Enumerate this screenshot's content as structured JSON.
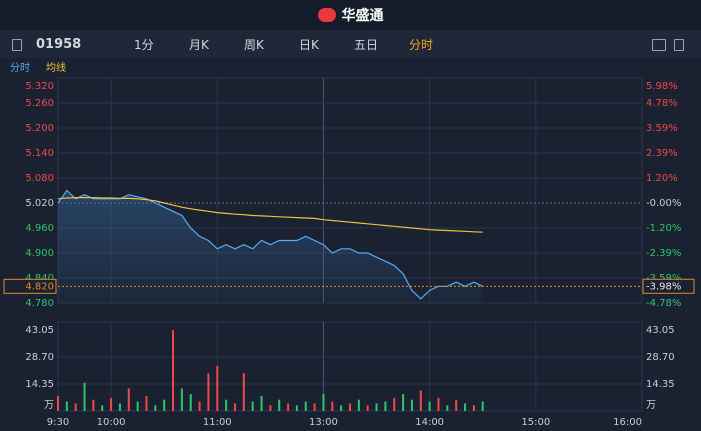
{
  "header": {
    "title": "华盛通"
  },
  "toolbar": {
    "code": "01958",
    "tabs": [
      "分时",
      "五日",
      "日K",
      "周K",
      "月K",
      "1分"
    ],
    "active": 0
  },
  "chart_data": {
    "type": "line",
    "legend": [
      "分时",
      "均线"
    ],
    "x": [
      "9:30",
      "9:35",
      "9:40",
      "9:45",
      "9:50",
      "9:55",
      "10:00",
      "10:05",
      "10:10",
      "10:15",
      "10:20",
      "10:25",
      "10:30",
      "10:35",
      "10:40",
      "10:45",
      "10:50",
      "10:55",
      "11:00",
      "11:05",
      "11:10",
      "11:15",
      "11:20",
      "11:25",
      "11:30",
      "11:35",
      "11:40",
      "11:45",
      "11:50",
      "11:55",
      "13:00",
      "13:05",
      "13:10",
      "13:15",
      "13:20",
      "13:25",
      "13:30",
      "13:35",
      "13:40",
      "13:45",
      "13:50",
      "13:55",
      "14:00",
      "14:05",
      "14:10",
      "14:15",
      "14:20",
      "14:25",
      "14:30"
    ],
    "xlim": [
      "9:30",
      "16:00"
    ],
    "xticks": [
      "9:30",
      "10:00",
      "11:00",
      "13:00",
      "14:00",
      "15:00",
      "16:00"
    ],
    "series": [
      {
        "name": "分时",
        "color": "#5aaaf0",
        "values": [
          5.02,
          5.05,
          5.03,
          5.04,
          5.03,
          5.03,
          5.03,
          5.03,
          5.04,
          5.035,
          5.03,
          5.02,
          5.01,
          5.0,
          4.99,
          4.96,
          4.94,
          4.93,
          4.91,
          4.92,
          4.91,
          4.92,
          4.91,
          4.93,
          4.92,
          4.93,
          4.93,
          4.93,
          4.94,
          4.93,
          4.92,
          4.9,
          4.91,
          4.91,
          4.9,
          4.9,
          4.89,
          4.88,
          4.87,
          4.85,
          4.81,
          4.79,
          4.81,
          4.82,
          4.82,
          4.83,
          4.82,
          4.83,
          4.82
        ]
      },
      {
        "name": "均线",
        "color": "#f0c040",
        "values": [
          5.03,
          5.032,
          5.033,
          5.033,
          5.033,
          5.032,
          5.032,
          5.031,
          5.031,
          5.03,
          5.028,
          5.025,
          5.02,
          5.015,
          5.01,
          5.006,
          5.003,
          5.0,
          4.997,
          4.995,
          4.993,
          4.992,
          4.99,
          4.989,
          4.988,
          4.987,
          4.986,
          4.985,
          4.984,
          4.983,
          4.98,
          4.978,
          4.976,
          4.974,
          4.972,
          4.97,
          4.968,
          4.966,
          4.964,
          4.962,
          4.96,
          4.958,
          4.956,
          4.955,
          4.954,
          4.953,
          4.952,
          4.951,
          4.95
        ]
      }
    ],
    "ylim": [
      4.78,
      5.32
    ],
    "yticks": [
      {
        "value": 5.32,
        "label": "5.320"
      },
      {
        "value": 5.26,
        "label": "5.260"
      },
      {
        "value": 5.2,
        "label": "5.200"
      },
      {
        "value": 5.14,
        "label": "5.140"
      },
      {
        "value": 5.08,
        "label": "5.080"
      },
      {
        "value": 5.02,
        "label": "5.020"
      },
      {
        "value": 4.96,
        "label": "4.960"
      },
      {
        "value": 4.9,
        "label": "4.900"
      },
      {
        "value": 4.84,
        "label": "4.840"
      },
      {
        "value": 4.78,
        "label": "4.780"
      }
    ],
    "y2lim": [
      -4.78,
      5.98
    ],
    "y2ticks": [
      {
        "value": 5.98,
        "label": "5.98%"
      },
      {
        "value": 4.78,
        "label": "4.78%"
      },
      {
        "value": 3.59,
        "label": "3.59%"
      },
      {
        "value": 2.39,
        "label": "2.39%"
      },
      {
        "value": 1.2,
        "label": "1.20%"
      },
      {
        "value": 0,
        "label": "-0.00%"
      },
      {
        "value": -1.2,
        "label": "-1.20%"
      },
      {
        "value": -2.39,
        "label": "-2.39%"
      },
      {
        "value": -3.59,
        "label": "-3.59%"
      },
      {
        "value": -4.78,
        "label": "-4.78%"
      }
    ],
    "up_color": "#f0474a",
    "down_color": "#2ec46c",
    "last_price": {
      "value": 4.82,
      "label": "4.820"
    },
    "last_change": {
      "value": -3.98,
      "label": "-3.98%"
    },
    "volume": {
      "values": [
        8,
        5,
        4,
        15,
        6,
        3,
        7,
        4,
        12,
        5,
        8,
        3,
        6,
        43,
        12,
        9,
        5,
        20,
        24,
        6,
        4,
        20,
        5,
        8,
        3,
        6,
        4,
        3,
        5,
        4,
        9,
        5,
        3,
        4,
        6,
        3,
        4,
        5,
        7,
        9,
        6,
        11,
        5,
        7,
        3,
        6,
        4,
        3,
        5
      ],
      "colors": [
        "#f0474a",
        "#2ec46c",
        "#f0474a",
        "#2ec46c",
        "#f0474a",
        "#2ec46c",
        "#f0474a",
        "#2ec46c",
        "#f0474a",
        "#2ec46c",
        "#f0474a",
        "#2ec46c",
        "#2ec46c",
        "#f0474a",
        "#2ec46c",
        "#2ec46c",
        "#f0474a",
        "#f0474a",
        "#f0474a",
        "#2ec46c",
        "#f0474a",
        "#f0474a",
        "#2ec46c",
        "#2ec46c",
        "#f0474a",
        "#2ec46c",
        "#f0474a",
        "#2ec46c",
        "#2ec46c",
        "#f0474a",
        "#2ec46c",
        "#f0474a",
        "#2ec46c",
        "#f0474a",
        "#2ec46c",
        "#f0474a",
        "#2ec46c",
        "#2ec46c",
        "#f0474a",
        "#2ec46c",
        "#2ec46c",
        "#f0474a",
        "#2ec46c",
        "#f0474a",
        "#2ec46c",
        "#f0474a",
        "#2ec46c",
        "#f0474a",
        "#2ec46c"
      ],
      "ylim": [
        0,
        47.3
      ],
      "yticks": [
        43.05,
        {
          "value": 28.7,
          "label": "28.70"
        },
        14.35,
        {
          "value": 0,
          "label": "万"
        }
      ]
    }
  }
}
